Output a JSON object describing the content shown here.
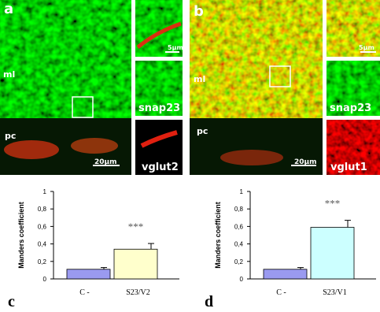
{
  "images": [
    {
      "letter": "a",
      "regions": [
        "ml",
        "pc"
      ],
      "scale_bar": "20µm",
      "inset_scale_bar": "5µm",
      "marker_1": "snap23",
      "marker_2": "vglut2"
    },
    {
      "letter": "b",
      "regions": [
        "ml",
        "pc"
      ],
      "scale_bar": "20µm",
      "inset_scale_bar": "5µm",
      "marker_1": "snap23",
      "marker_2": "vglut1"
    }
  ],
  "chart_data": [
    {
      "type": "bar",
      "panel_label": "c",
      "y_label": "Manders coefficient",
      "categories": [
        "C -",
        "S23/V2"
      ],
      "values": [
        0.11,
        0.34
      ],
      "errors": [
        0.02,
        0.065
      ],
      "colors": [
        "#9a9af0",
        "#ffffcc"
      ],
      "annotations": [
        null,
        "***"
      ],
      "ylim": [
        0,
        1
      ],
      "yticks": [
        0,
        {
          "value": 0.2,
          "label": "0,2"
        },
        {
          "value": 0.4,
          "label": "0,4"
        },
        {
          "value": 0.6,
          "label": "0,6"
        },
        {
          "value": 0.8,
          "label": "0,8"
        },
        1
      ]
    },
    {
      "type": "bar",
      "panel_label": "d",
      "y_label": "Manders coefficient",
      "categories": [
        "C -",
        "S23/V1"
      ],
      "values": [
        0.11,
        0.59
      ],
      "errors": [
        0.02,
        0.08
      ],
      "colors": [
        "#9a9af0",
        "#ccffff"
      ],
      "annotations": [
        null,
        "***"
      ],
      "ylim": [
        0,
        1
      ],
      "yticks": [
        0,
        {
          "value": 0.2,
          "label": "0,2"
        },
        {
          "value": 0.4,
          "label": "0,4"
        },
        {
          "value": 0.6,
          "label": "0,6"
        },
        {
          "value": 0.8,
          "label": "0,8"
        },
        1
      ]
    }
  ]
}
